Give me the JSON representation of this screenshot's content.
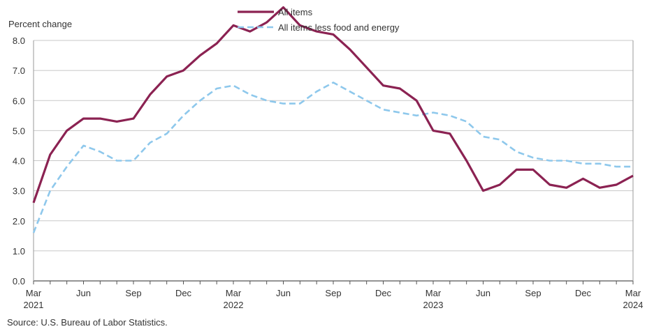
{
  "chart_data": {
    "type": "line",
    "ylabel": "Percent change",
    "ylim": [
      0,
      8
    ],
    "yticks": [
      "0.0",
      "1.0",
      "2.0",
      "3.0",
      "4.0",
      "5.0",
      "6.0",
      "7.0",
      "8.0"
    ],
    "grid": true,
    "legend_position": "top-center",
    "x": [
      "Mar 2021",
      "Apr 2021",
      "May 2021",
      "Jun 2021",
      "Jul 2021",
      "Aug 2021",
      "Sep 2021",
      "Oct 2021",
      "Nov 2021",
      "Dec 2021",
      "Jan 2022",
      "Feb 2022",
      "Mar 2022",
      "Apr 2022",
      "May 2022",
      "Jun 2022",
      "Jul 2022",
      "Aug 2022",
      "Sep 2022",
      "Oct 2022",
      "Nov 2022",
      "Dec 2022",
      "Jan 2023",
      "Feb 2023",
      "Mar 2023",
      "Apr 2023",
      "May 2023",
      "Jun 2023",
      "Jul 2023",
      "Aug 2023",
      "Sep 2023",
      "Oct 2023",
      "Nov 2023",
      "Dec 2023",
      "Jan 2024",
      "Feb 2024",
      "Mar 2024"
    ],
    "xtick_labels": [
      {
        "index": 0,
        "top": "Mar",
        "bottom": "2021"
      },
      {
        "index": 3,
        "top": "Jun",
        "bottom": ""
      },
      {
        "index": 6,
        "top": "Sep",
        "bottom": ""
      },
      {
        "index": 9,
        "top": "Dec",
        "bottom": ""
      },
      {
        "index": 12,
        "top": "Mar",
        "bottom": "2022"
      },
      {
        "index": 15,
        "top": "Jun",
        "bottom": ""
      },
      {
        "index": 18,
        "top": "Sep",
        "bottom": ""
      },
      {
        "index": 21,
        "top": "Dec",
        "bottom": ""
      },
      {
        "index": 24,
        "top": "Mar",
        "bottom": "2023"
      },
      {
        "index": 27,
        "top": "Jun",
        "bottom": ""
      },
      {
        "index": 30,
        "top": "Sep",
        "bottom": ""
      },
      {
        "index": 33,
        "top": "Dec",
        "bottom": ""
      },
      {
        "index": 36,
        "top": "Mar",
        "bottom": "2024"
      }
    ],
    "series": [
      {
        "name": "All items",
        "color": "#8b2252",
        "style": "solid",
        "values": [
          2.6,
          4.2,
          5.0,
          5.4,
          5.4,
          5.3,
          5.4,
          6.2,
          6.8,
          7.0,
          7.5,
          7.9,
          8.5,
          8.3,
          8.6,
          9.1,
          8.5,
          8.3,
          8.2,
          7.7,
          7.1,
          6.5,
          6.4,
          6.0,
          5.0,
          4.9,
          4.0,
          3.0,
          3.2,
          3.7,
          3.7,
          3.2,
          3.1,
          3.4,
          3.1,
          3.2,
          3.5
        ]
      },
      {
        "name": "All items less food and energy",
        "color": "#8ec8ec",
        "style": "dashed",
        "values": [
          1.6,
          3.0,
          3.8,
          4.5,
          4.3,
          4.0,
          4.0,
          4.6,
          4.9,
          5.5,
          6.0,
          6.4,
          6.5,
          6.2,
          6.0,
          5.9,
          5.9,
          6.3,
          6.6,
          6.3,
          6.0,
          5.7,
          5.6,
          5.5,
          5.6,
          5.5,
          5.3,
          4.8,
          4.7,
          4.3,
          4.1,
          4.0,
          4.0,
          3.9,
          3.9,
          3.8,
          3.8
        ]
      }
    ]
  },
  "source": "Source: U.S. Bureau  of Labor Statistics."
}
